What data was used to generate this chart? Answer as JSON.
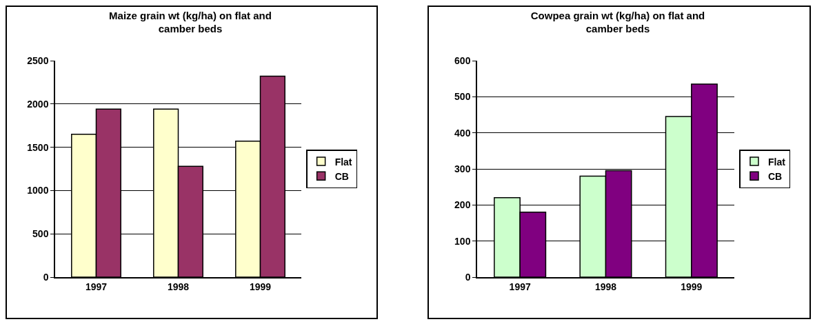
{
  "chart_data": [
    {
      "type": "bar",
      "title": "Maize grain wt (kg/ha) on flat and camber beds",
      "categories": [
        "1997",
        "1998",
        "1999"
      ],
      "series": [
        {
          "name": "Flat",
          "color": "#ffffcc",
          "values": [
            1650,
            1940,
            1570
          ]
        },
        {
          "name": "CB",
          "color": "#993366",
          "values": [
            1940,
            1280,
            2320
          ]
        }
      ],
      "ylim": [
        0,
        2500
      ],
      "yticks": [
        0,
        500,
        1000,
        1500,
        2000,
        2500
      ],
      "grid": "y",
      "legend": "right"
    },
    {
      "type": "bar",
      "title": "Cowpea grain wt (kg/ha) on flat and camber beds",
      "categories": [
        "1997",
        "1998",
        "1999"
      ],
      "series": [
        {
          "name": "Flat",
          "color": "#ccffcc",
          "values": [
            220,
            280,
            445
          ]
        },
        {
          "name": "CB",
          "color": "#800080",
          "values": [
            180,
            295,
            535
          ]
        }
      ],
      "ylim": [
        0,
        600
      ],
      "yticks": [
        0,
        100,
        200,
        300,
        400,
        500,
        600
      ],
      "grid": "y",
      "legend": "right"
    }
  ]
}
